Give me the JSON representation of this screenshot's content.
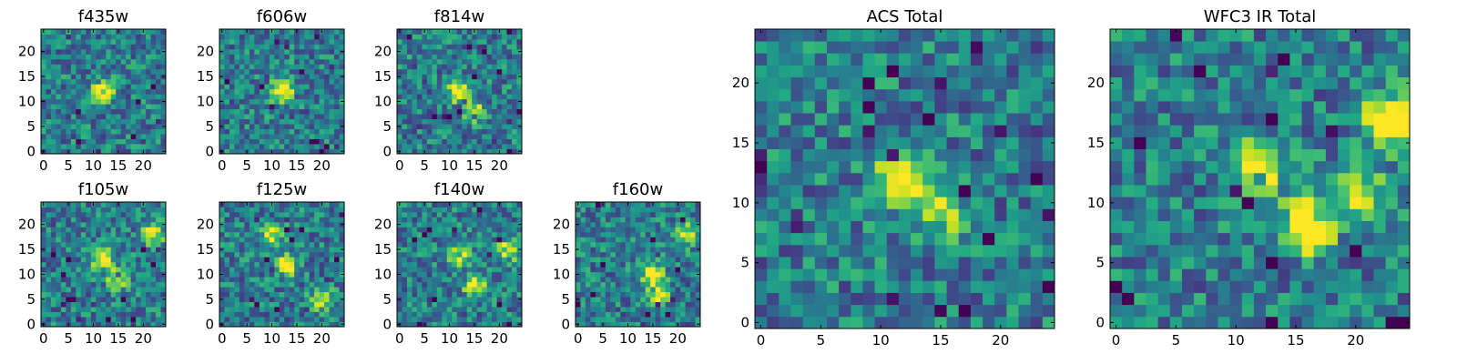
{
  "chart_data": [
    {
      "type": "heatmap",
      "title": "f435w",
      "x_ticks": [
        "0",
        "5",
        "10",
        "15",
        "20"
      ],
      "y_ticks": [
        "0",
        "5",
        "10",
        "15",
        "20"
      ],
      "xlim": [
        -0.5,
        24.5
      ],
      "ylim": [
        -0.5,
        24.5
      ],
      "grid": false,
      "colormap": "viridis",
      "bright_spots": [
        {
          "x": 12,
          "y": 12,
          "level": 1.0
        }
      ],
      "seed": 3
    },
    {
      "type": "heatmap",
      "title": "f606w",
      "x_ticks": [
        "0",
        "5",
        "10",
        "15",
        "20"
      ],
      "y_ticks": [
        "0",
        "5",
        "10",
        "15",
        "20"
      ],
      "xlim": [
        -0.5,
        24.5
      ],
      "ylim": [
        -0.5,
        24.5
      ],
      "grid": false,
      "colormap": "viridis",
      "bright_spots": [
        {
          "x": 12,
          "y": 12,
          "level": 1.0
        }
      ],
      "seed": 7
    },
    {
      "type": "heatmap",
      "title": "f814w",
      "x_ticks": [
        "0",
        "5",
        "10",
        "15",
        "20"
      ],
      "y_ticks": [
        "0",
        "5",
        "10",
        "15",
        "20"
      ],
      "xlim": [
        -0.5,
        24.5
      ],
      "ylim": [
        -0.5,
        24.5
      ],
      "grid": false,
      "colormap": "viridis",
      "bright_spots": [
        {
          "x": 12,
          "y": 12,
          "level": 1.0
        },
        {
          "x": 15,
          "y": 8,
          "level": 0.65
        }
      ],
      "seed": 11
    },
    {
      "type": "heatmap",
      "title": "f105w",
      "x_ticks": [
        "0",
        "5",
        "10",
        "15",
        "20"
      ],
      "y_ticks": [
        "0",
        "5",
        "10",
        "15",
        "20"
      ],
      "xlim": [
        -0.5,
        24.5
      ],
      "ylim": [
        -0.5,
        24.5
      ],
      "grid": false,
      "colormap": "viridis",
      "bright_spots": [
        {
          "x": 12,
          "y": 13,
          "level": 0.85
        },
        {
          "x": 22,
          "y": 18,
          "level": 0.8
        },
        {
          "x": 15,
          "y": 9,
          "level": 0.7
        }
      ],
      "seed": 19
    },
    {
      "type": "heatmap",
      "title": "f125w",
      "x_ticks": [
        "0",
        "5",
        "10",
        "15",
        "20"
      ],
      "y_ticks": [
        "0",
        "5",
        "10",
        "15",
        "20"
      ],
      "xlim": [
        -0.5,
        24.5
      ],
      "ylim": [
        -0.5,
        24.5
      ],
      "grid": false,
      "colormap": "viridis",
      "bright_spots": [
        {
          "x": 13,
          "y": 12,
          "level": 0.8
        },
        {
          "x": 10,
          "y": 18,
          "level": 0.75
        },
        {
          "x": 20,
          "y": 5,
          "level": 0.7
        }
      ],
      "seed": 23
    },
    {
      "type": "heatmap",
      "title": "f140w",
      "x_ticks": [
        "0",
        "5",
        "10",
        "15",
        "20"
      ],
      "y_ticks": [
        "0",
        "5",
        "10",
        "15",
        "20"
      ],
      "xlim": [
        -0.5,
        24.5
      ],
      "ylim": [
        -0.5,
        24.5
      ],
      "grid": false,
      "colormap": "viridis",
      "bright_spots": [
        {
          "x": 15,
          "y": 8,
          "level": 0.85
        },
        {
          "x": 22,
          "y": 15,
          "level": 0.75
        },
        {
          "x": 12,
          "y": 14,
          "level": 0.7
        }
      ],
      "seed": 29
    },
    {
      "type": "heatmap",
      "title": "f160w",
      "x_ticks": [
        "0",
        "5",
        "10",
        "15",
        "20"
      ],
      "y_ticks": [
        "0",
        "5",
        "10",
        "15",
        "20"
      ],
      "xlim": [
        -0.5,
        24.5
      ],
      "ylim": [
        -0.5,
        24.5
      ],
      "grid": false,
      "colormap": "viridis",
      "bright_spots": [
        {
          "x": 15,
          "y": 10,
          "level": 0.95
        },
        {
          "x": 22,
          "y": 18,
          "level": 0.8
        },
        {
          "x": 16,
          "y": 6,
          "level": 0.8
        }
      ],
      "seed": 31
    },
    {
      "type": "heatmap",
      "title": "ACS Total",
      "x_ticks": [
        "0",
        "5",
        "10",
        "15",
        "20"
      ],
      "y_ticks": [
        "0",
        "5",
        "10",
        "15",
        "20"
      ],
      "xlim": [
        -0.5,
        24.5
      ],
      "ylim": [
        -0.5,
        24.5
      ],
      "grid": false,
      "colormap": "viridis",
      "bright_spots": [
        {
          "x": 12,
          "y": 12,
          "level": 1.0
        },
        {
          "x": 15,
          "y": 9,
          "level": 0.55
        }
      ],
      "seed": 37
    },
    {
      "type": "heatmap",
      "title": "WFC3 IR Total",
      "x_ticks": [
        "0",
        "5",
        "10",
        "15",
        "20"
      ],
      "y_ticks": [
        "0",
        "5",
        "10",
        "15",
        "20"
      ],
      "xlim": [
        -0.5,
        24.5
      ],
      "ylim": [
        -0.5,
        24.5
      ],
      "grid": false,
      "colormap": "viridis",
      "bright_spots": [
        {
          "x": 12,
          "y": 13,
          "level": 0.9
        },
        {
          "x": 16,
          "y": 8,
          "level": 1.0
        },
        {
          "x": 23,
          "y": 17,
          "level": 1.0
        },
        {
          "x": 20,
          "y": 11,
          "level": 0.7
        }
      ],
      "seed": 41
    }
  ]
}
